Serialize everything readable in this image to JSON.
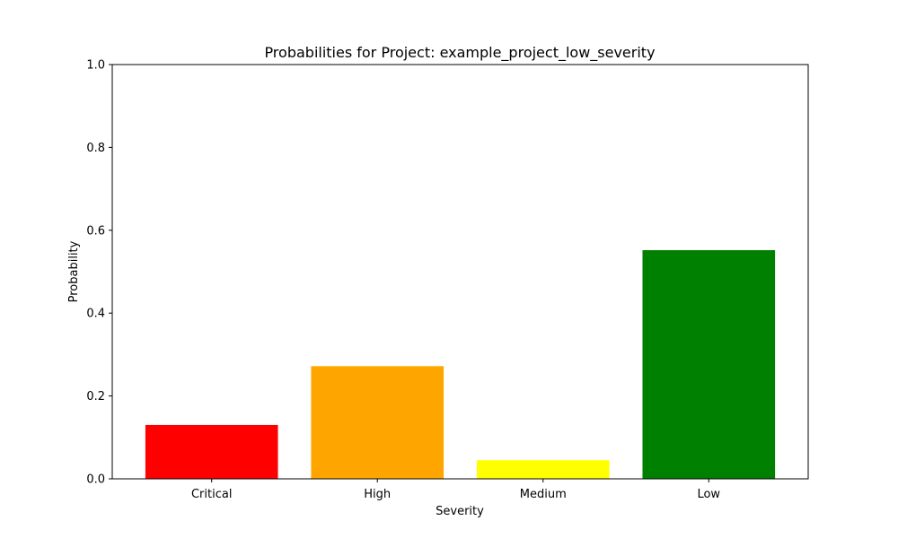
{
  "chart_data": {
    "type": "bar",
    "title": "Probabilities for Project: example_project_low_severity",
    "xlabel": "Severity",
    "ylabel": "Probability",
    "categories": [
      "Critical",
      "High",
      "Medium",
      "Low"
    ],
    "values": [
      0.13,
      0.272,
      0.045,
      0.552
    ],
    "colors": [
      "#ff0000",
      "#ffa500",
      "#ffff00",
      "#008000"
    ],
    "ylim": [
      0,
      1.0
    ],
    "yticks": [
      0.0,
      0.2,
      0.4,
      0.6,
      0.8,
      1.0
    ],
    "ytick_labels": [
      "0.0",
      "0.2",
      "0.4",
      "0.6",
      "0.8",
      "1.0"
    ],
    "grid": false,
    "legend": false
  }
}
